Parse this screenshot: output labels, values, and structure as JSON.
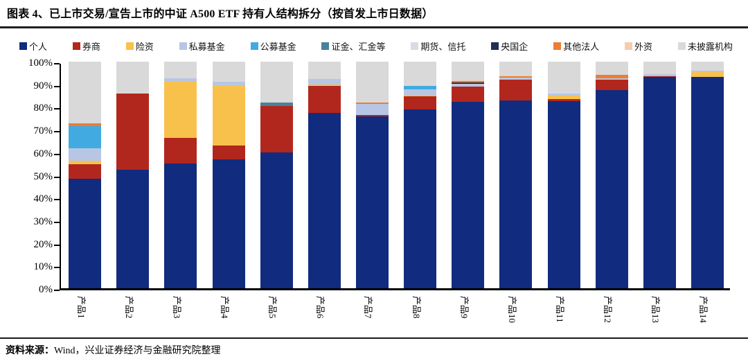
{
  "header": {
    "title": "图表 4、已上市交易/宣告上市的中证 A500 ETF 持有人结构拆分（按首发上市日数据）"
  },
  "footer": {
    "source_label": "资料来源：",
    "source_text": "Wind，兴业证券经济与金融研究院整理"
  },
  "chart_data": {
    "type": "bar",
    "stacked": true,
    "title": "已上市交易/宣告上市的中证 A500 ETF 持有人结构拆分（按首发上市日数据）",
    "xlabel": "",
    "ylabel": "",
    "unit": "%",
    "ylim": [
      0,
      100
    ],
    "grid": false,
    "legend_position": "top",
    "yticks": [
      "100%",
      "90%",
      "80%",
      "70%",
      "60%",
      "50%",
      "40%",
      "30%",
      "20%",
      "10%",
      "0%"
    ],
    "categories": [
      "产品1",
      "产品2",
      "产品3",
      "产品4",
      "产品5",
      "产品6",
      "产品7",
      "产品8",
      "产品9",
      "产品10",
      "产品11",
      "产品12",
      "产品13",
      "产品14"
    ],
    "series": [
      {
        "name": "个人",
        "color": "#112B7E",
        "values": [
          48.2,
          52.4,
          55.1,
          57.0,
          59.9,
          77.4,
          75.7,
          78.8,
          82.3,
          83.0,
          82.7,
          87.6,
          93.3,
          93.3
        ]
      },
      {
        "name": "券商",
        "color": "#B2271D",
        "values": [
          6.6,
          33.5,
          11.4,
          6.1,
          20.6,
          11.8,
          0.7,
          5.9,
          6.7,
          9.2,
          0.8,
          4.4,
          0.3,
          0
        ]
      },
      {
        "name": "险资",
        "color": "#F8C14C",
        "values": [
          1.5,
          0,
          24.7,
          26.1,
          0,
          0.8,
          0,
          0.6,
          0,
          0,
          1.6,
          0,
          0,
          2.0
        ]
      },
      {
        "name": "私募基金",
        "color": "#B7C6E4",
        "values": [
          5.6,
          0,
          1.5,
          2.0,
          0,
          2.3,
          4.9,
          2.6,
          1.2,
          0.8,
          0.8,
          0.7,
          1.0,
          0.6
        ]
      },
      {
        "name": "公募基金",
        "color": "#41ABE1",
        "values": [
          9.8,
          0,
          0,
          0,
          0,
          0,
          0,
          1.3,
          0,
          0,
          0,
          0,
          0,
          0
        ]
      },
      {
        "name": "证金、汇金等",
        "color": "#4A8198",
        "values": [
          0,
          0,
          0,
          0,
          1.5,
          0,
          0,
          0,
          0,
          0,
          0,
          0,
          0,
          0
        ]
      },
      {
        "name": "期货、信托",
        "color": "#D7DCE4",
        "values": [
          0,
          0,
          0,
          0,
          0,
          0,
          0,
          0,
          0,
          0,
          0.7,
          0,
          0,
          0
        ]
      },
      {
        "name": "央国企",
        "color": "#202F55",
        "values": [
          0,
          0,
          0,
          0,
          0,
          0,
          0,
          0,
          0.6,
          0,
          0,
          0,
          0,
          0
        ]
      },
      {
        "name": "其他法人",
        "color": "#ED7D31",
        "values": [
          1.0,
          0,
          0,
          0,
          0,
          0,
          0.8,
          0,
          0.5,
          0.5,
          0,
          1.6,
          0,
          0
        ]
      },
      {
        "name": "外资",
        "color": "#F8CBAD",
        "values": [
          0,
          0,
          0,
          0,
          0,
          0,
          0,
          0,
          0.4,
          0,
          0,
          0,
          0,
          0
        ]
      },
      {
        "name": "未披露机构",
        "color": "#D9D9D9",
        "values": [
          27.3,
          14.1,
          7.3,
          8.8,
          18.0,
          7.7,
          17.9,
          10.8,
          8.3,
          6.5,
          13.4,
          5.7,
          5.4,
          4.1
        ]
      }
    ]
  }
}
